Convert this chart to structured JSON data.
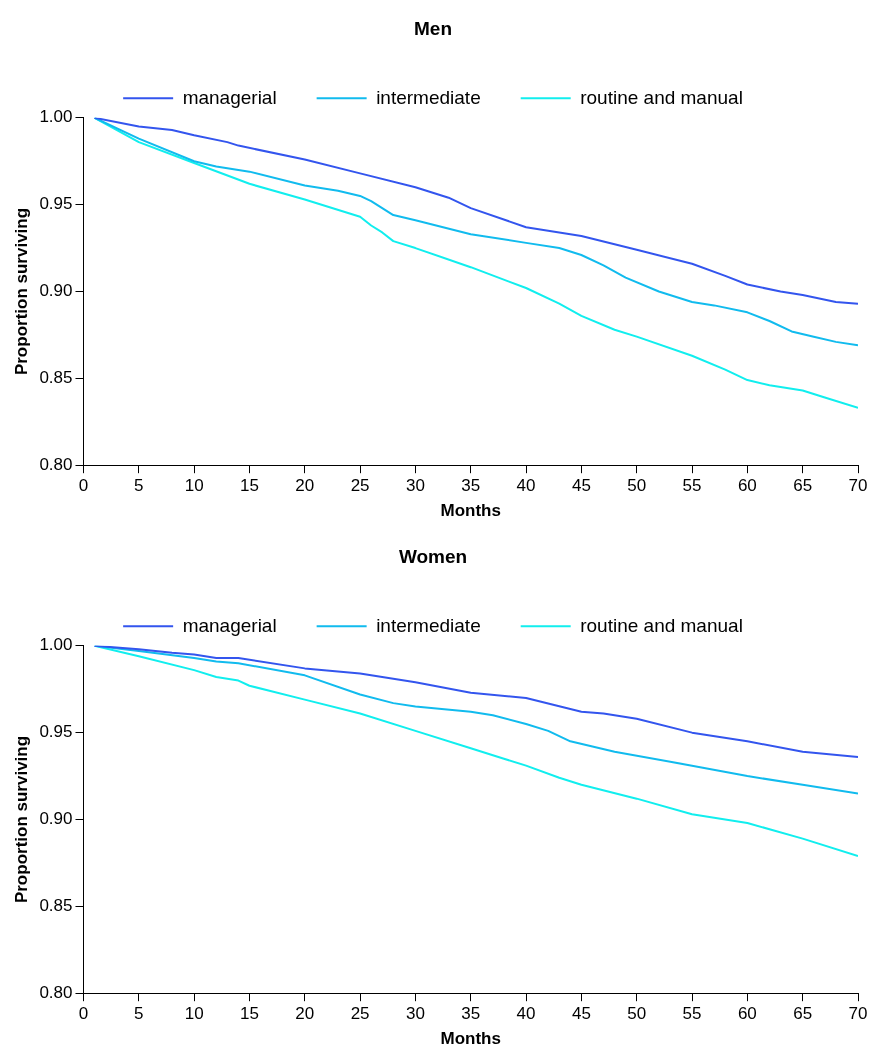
{
  "chart_data": [
    {
      "type": "line",
      "title": "Men",
      "xlabel": "Months",
      "ylabel": "Proportion surviving",
      "legend": "top",
      "grid": false,
      "xlim": [
        0,
        70
      ],
      "xticks": [
        0,
        5,
        10,
        15,
        20,
        25,
        30,
        35,
        40,
        45,
        50,
        55,
        60,
        65,
        70
      ],
      "ylim": [
        0.8,
        1
      ],
      "yticks": [
        {
          "value": 0.8,
          "label": "0.80"
        },
        {
          "value": 0.85,
          "label": "0.85"
        },
        {
          "value": 0.9,
          "label": "0.90"
        },
        {
          "value": 0.95,
          "label": "0.95"
        },
        {
          "value": 1,
          "label": "1.00"
        }
      ],
      "series": [
        {
          "name": "managerial",
          "color": "#3355ee",
          "x": [
            1,
            5,
            8,
            10,
            13,
            14,
            20,
            25,
            30,
            33,
            35,
            40,
            45,
            50,
            55,
            58,
            60,
            63,
            65,
            68,
            70
          ],
          "values": [
            1.0,
            0.995,
            0.993,
            0.99,
            0.986,
            0.984,
            0.976,
            0.968,
            0.96,
            0.954,
            0.948,
            0.937,
            0.932,
            0.924,
            0.916,
            0.909,
            0.904,
            0.9,
            0.898,
            0.894,
            0.893
          ]
        },
        {
          "name": "intermediate",
          "color": "#11bbee",
          "x": [
            1,
            5,
            10,
            12,
            15,
            20,
            23,
            25,
            26,
            28,
            30,
            35,
            40,
            43,
            45,
            47,
            49,
            52,
            55,
            57,
            60,
            62,
            64,
            66,
            68,
            70
          ],
          "values": [
            1.0,
            0.988,
            0.975,
            0.972,
            0.969,
            0.961,
            0.958,
            0.955,
            0.952,
            0.944,
            0.941,
            0.933,
            0.928,
            0.925,
            0.921,
            0.915,
            0.908,
            0.9,
            0.894,
            0.892,
            0.888,
            0.883,
            0.877,
            0.874,
            0.871,
            0.869
          ]
        },
        {
          "name": "routine and manual",
          "color": "#11eeee",
          "x": [
            1,
            5,
            10,
            15,
            20,
            25,
            26,
            27,
            28,
            30,
            35,
            40,
            43,
            45,
            48,
            50,
            55,
            58,
            60,
            62,
            65,
            67,
            70
          ],
          "values": [
            1.0,
            0.986,
            0.974,
            0.962,
            0.953,
            0.943,
            0.938,
            0.934,
            0.929,
            0.925,
            0.914,
            0.902,
            0.893,
            0.886,
            0.878,
            0.874,
            0.863,
            0.855,
            0.849,
            0.846,
            0.843,
            0.839,
            0.833
          ]
        }
      ]
    },
    {
      "type": "line",
      "title": "Women",
      "xlabel": "Months",
      "ylabel": "Proportion surviving",
      "legend": "top",
      "grid": false,
      "xlim": [
        0,
        70
      ],
      "xticks": [
        0,
        5,
        10,
        15,
        20,
        25,
        30,
        35,
        40,
        45,
        50,
        55,
        60,
        65,
        70
      ],
      "ylim": [
        0.8,
        1
      ],
      "yticks": [
        {
          "value": 0.8,
          "label": "0.80"
        },
        {
          "value": 0.85,
          "label": "0.85"
        },
        {
          "value": 0.9,
          "label": "0.90"
        },
        {
          "value": 0.95,
          "label": "0.95"
        },
        {
          "value": 1,
          "label": "1.00"
        }
      ],
      "series": [
        {
          "name": "managerial",
          "color": "#3355ee",
          "x": [
            1,
            5,
            8,
            10,
            12,
            14,
            20,
            25,
            30,
            35,
            40,
            45,
            47,
            50,
            55,
            60,
            65,
            70
          ],
          "values": [
            1.0,
            0.998,
            0.996,
            0.995,
            0.993,
            0.993,
            0.987,
            0.984,
            0.979,
            0.973,
            0.97,
            0.962,
            0.961,
            0.958,
            0.95,
            0.945,
            0.939,
            0.936
          ]
        },
        {
          "name": "intermediate",
          "color": "#11bbee",
          "x": [
            1,
            5,
            10,
            12,
            14,
            20,
            25,
            28,
            30,
            35,
            37,
            40,
            42,
            44,
            46,
            48,
            55,
            60,
            65,
            70
          ],
          "values": [
            1.0,
            0.997,
            0.993,
            0.991,
            0.99,
            0.983,
            0.972,
            0.967,
            0.965,
            0.962,
            0.96,
            0.955,
            0.951,
            0.945,
            0.942,
            0.939,
            0.931,
            0.925,
            0.92,
            0.915
          ]
        },
        {
          "name": "routine and manual",
          "color": "#11eeee",
          "x": [
            1,
            5,
            10,
            12,
            14,
            15,
            20,
            25,
            30,
            35,
            38,
            40,
            43,
            45,
            50,
            55,
            60,
            65,
            70
          ],
          "values": [
            1.0,
            0.994,
            0.986,
            0.982,
            0.98,
            0.977,
            0.969,
            0.961,
            0.951,
            0.941,
            0.935,
            0.931,
            0.924,
            0.92,
            0.912,
            0.903,
            0.898,
            0.889,
            0.879
          ]
        }
      ]
    }
  ]
}
